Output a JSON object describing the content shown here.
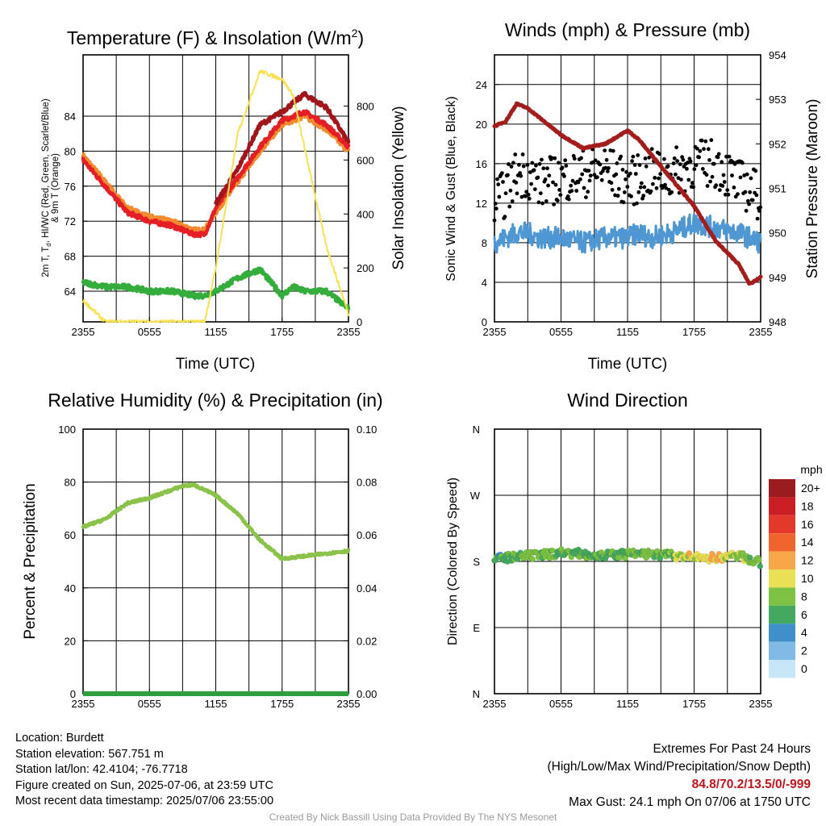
{
  "colors": {
    "air_temp": "#e41f26",
    "dew_point": "#35ad3c",
    "heat_index": "#a1161b",
    "temp_9m": "#f28a30",
    "solar": "#f9e154",
    "wind_speed": "#4f97d2",
    "wind_gust": "#000000",
    "pressure": "#a31d1d",
    "humidity": "#8bc34a",
    "precip": "#2e9e3f"
  },
  "time_ticks": [
    "2355",
    "0555",
    "1155",
    "1755",
    "2355"
  ],
  "panels": {
    "temperature": {
      "title_prefix": "Temperature (F) & Insolation (W/m",
      "title_sup": "2",
      "title_suffix": ")",
      "ylabel_line1": "2m T, T",
      "ylabel_sub": "d",
      "ylabel_line1_rest": ", HI/WC (Red, Green, Scarlet/Blue)",
      "ylabel_line2": "& 9m T (Orange)",
      "y2label": "Solar Insolation (Yellow)",
      "xlabel": "Time (UTC)",
      "left_ticks": [
        "64",
        "68",
        "72",
        "76",
        "80",
        "84"
      ],
      "right_ticks": [
        "0",
        "200",
        "400",
        "600",
        "800"
      ]
    },
    "winds": {
      "title": "Winds (mph) & Pressure (mb)",
      "ylabel": "Sonic Wind & Gust (Blue, Black)",
      "y2label": "Station Pressure (Maroon)",
      "xlabel": "Time (UTC)",
      "left_ticks": [
        "0",
        "4",
        "8",
        "12",
        "16",
        "20",
        "24"
      ],
      "right_ticks": [
        "948",
        "949",
        "950",
        "951",
        "952",
        "953",
        "954"
      ]
    },
    "humidity": {
      "title": "Relative Humidity (%) & Precipitation (in)",
      "ylabel": "Percent & Precipitation",
      "left_ticks": [
        "0",
        "20",
        "40",
        "60",
        "80",
        "100"
      ],
      "right_ticks": [
        "0.00",
        "0.02",
        "0.04",
        "0.06",
        "0.08",
        "0.10"
      ]
    },
    "direction": {
      "title": "Wind Direction",
      "ylabel": "Direction (Colored By Speed)",
      "dir_ticks": [
        "N",
        "E",
        "S",
        "W",
        "N"
      ],
      "legend_title": "mph",
      "legend_labels": [
        "20+",
        "18",
        "16",
        "14",
        "12",
        "10",
        "8",
        "6",
        "4",
        "2",
        "0"
      ],
      "legend_colors": [
        "#9b1b1e",
        "#c81e24",
        "#e2392b",
        "#f0642e",
        "#f8a748",
        "#e9e055",
        "#7dc243",
        "#45a85f",
        "#3f8fc8",
        "#7fbbe4",
        "#c6e6f7"
      ]
    }
  },
  "chart_data": [
    {
      "type": "line",
      "title": "Temperature (F) & Insolation (W/m2)",
      "xlabel": "Time (UTC)",
      "ylabel": "2m T, Td, HI/WC (Red, Green, Scarlet/Blue) & 9m T (Orange)",
      "y2label": "Solar Insolation (Yellow)",
      "x_ticks": [
        "2355",
        "0555",
        "1155",
        "1755",
        "2355"
      ],
      "x_hours": [
        0,
        2,
        4,
        6,
        8,
        10,
        11,
        12,
        14,
        16,
        18,
        19,
        20,
        22,
        24
      ],
      "ylim": [
        60.5,
        91
      ],
      "y2lim": [
        0,
        990
      ],
      "series": [
        {
          "name": "2m T",
          "axis": "left",
          "values": [
            79,
            76,
            73,
            72,
            71.5,
            70.5,
            70.5,
            73.5,
            77,
            80.5,
            83.5,
            84,
            84.5,
            83,
            80.5
          ]
        },
        {
          "name": "9m T",
          "axis": "left",
          "values": [
            79.5,
            76.5,
            73.5,
            72.5,
            72,
            71,
            71,
            73,
            76.5,
            80,
            83,
            83.5,
            84,
            82.5,
            80
          ]
        },
        {
          "name": "HI/WC",
          "axis": "left",
          "values": [
            null,
            null,
            null,
            null,
            null,
            null,
            null,
            74,
            78,
            83,
            84.5,
            85.5,
            86.5,
            85,
            81
          ]
        },
        {
          "name": "Td",
          "axis": "left",
          "values": [
            65,
            64.5,
            64.5,
            64,
            64,
            63.5,
            63.5,
            64,
            65.5,
            66.5,
            63.5,
            64.5,
            64,
            64,
            62
          ]
        },
        {
          "name": "Solar",
          "axis": "right",
          "values": [
            80,
            0,
            0,
            0,
            0,
            0,
            0,
            200,
            700,
            930,
            900,
            840,
            650,
            280,
            30
          ]
        }
      ]
    },
    {
      "type": "line",
      "title": "Winds (mph) & Pressure (mb)",
      "xlabel": "Time (UTC)",
      "ylabel": "Sonic Wind & Gust (Blue, Black)",
      "y2label": "Station Pressure (Maroon)",
      "x_ticks": [
        "2355",
        "0555",
        "1155",
        "1755",
        "2355"
      ],
      "x_hours": [
        0,
        1,
        2,
        3,
        4,
        6,
        8,
        10,
        12,
        13,
        14,
        16,
        18,
        20,
        22,
        23,
        24
      ],
      "ylim": [
        0,
        27
      ],
      "y2lim": [
        948,
        954
      ],
      "series": [
        {
          "name": "Sonic Wind",
          "axis": "left",
          "values": [
            8,
            8.5,
            9,
            9,
            8.5,
            8.5,
            8,
            8.5,
            8.5,
            9,
            8.5,
            9,
            10,
            9.5,
            9,
            8.5,
            8
          ]
        },
        {
          "name": "Gust",
          "axis": "left",
          "values": [
            12,
            13,
            15,
            15,
            14,
            14.5,
            15,
            15.5,
            14,
            14.5,
            15,
            15,
            16,
            16,
            14,
            13.5,
            12.5
          ]
        },
        {
          "name": "Station Pressure",
          "axis": "right",
          "values": [
            952.4,
            952.5,
            952.9,
            952.8,
            952.6,
            952.2,
            951.9,
            952.0,
            952.3,
            952.1,
            951.8,
            951.2,
            950.6,
            949.8,
            949.3,
            948.85,
            949.0
          ]
        }
      ]
    },
    {
      "type": "line",
      "title": "Relative Humidity (%) & Precipitation (in)",
      "ylabel": "Percent & Precipitation",
      "x_ticks": [
        "2355",
        "0555",
        "1155",
        "1755",
        "2355"
      ],
      "x_hours": [
        0,
        2,
        4,
        6,
        8,
        9,
        10,
        12,
        14,
        16,
        18,
        20,
        22,
        24
      ],
      "ylim": [
        0,
        100
      ],
      "y2lim": [
        0,
        0.1
      ],
      "series": [
        {
          "name": "Relative Humidity",
          "axis": "left",
          "values": [
            63,
            66,
            72,
            74,
            77,
            78.5,
            79,
            75,
            68,
            58,
            51,
            52,
            53,
            54
          ]
        },
        {
          "name": "Precipitation",
          "axis": "right",
          "values": [
            0,
            0,
            0,
            0,
            0,
            0,
            0,
            0,
            0,
            0,
            0,
            0,
            0,
            0
          ]
        }
      ]
    },
    {
      "type": "scatter",
      "title": "Wind Direction",
      "ylabel": "Direction (Colored By Speed)",
      "x_ticks": [
        "2355",
        "0555",
        "1155",
        "1755",
        "2355"
      ],
      "y_ticks": [
        "N",
        "E",
        "S",
        "W",
        "N"
      ],
      "ylim": [
        0,
        360
      ],
      "legend": {
        "title": "mph",
        "position": "right"
      },
      "x_hours": [
        0,
        2,
        4,
        6,
        8,
        10,
        12,
        14,
        16,
        18,
        20,
        22,
        24
      ],
      "direction_deg": [
        183,
        186,
        188,
        192,
        190,
        188,
        190,
        190,
        188,
        185,
        185,
        188,
        178
      ],
      "speed_mph": [
        7,
        8,
        9,
        8,
        8,
        8,
        8,
        8,
        9,
        11,
        12,
        10,
        8
      ]
    }
  ],
  "info": {
    "location": "Location: Burdett",
    "elevation": "Station elevation: 567.751 m",
    "latlon": "Station lat/lon: 42.4104; -76.7718",
    "created": "Figure created on Sun, 2025-07-06, at 23:59 UTC",
    "recent": "Most recent data timestamp: 2025/07/06 23:55:00"
  },
  "extremes": {
    "title": "Extremes For Past 24 Hours",
    "subtitle": "(High/Low/Max Wind/Precipitation/Snow Depth)",
    "values": "84.8/70.2/13.5/0/-999",
    "max_gust": "Max Gust: 24.1 mph On 07/06 at 1750 UTC"
  },
  "credit": "Created By Nick Bassill Using Data Provided By The NYS Mesonet"
}
